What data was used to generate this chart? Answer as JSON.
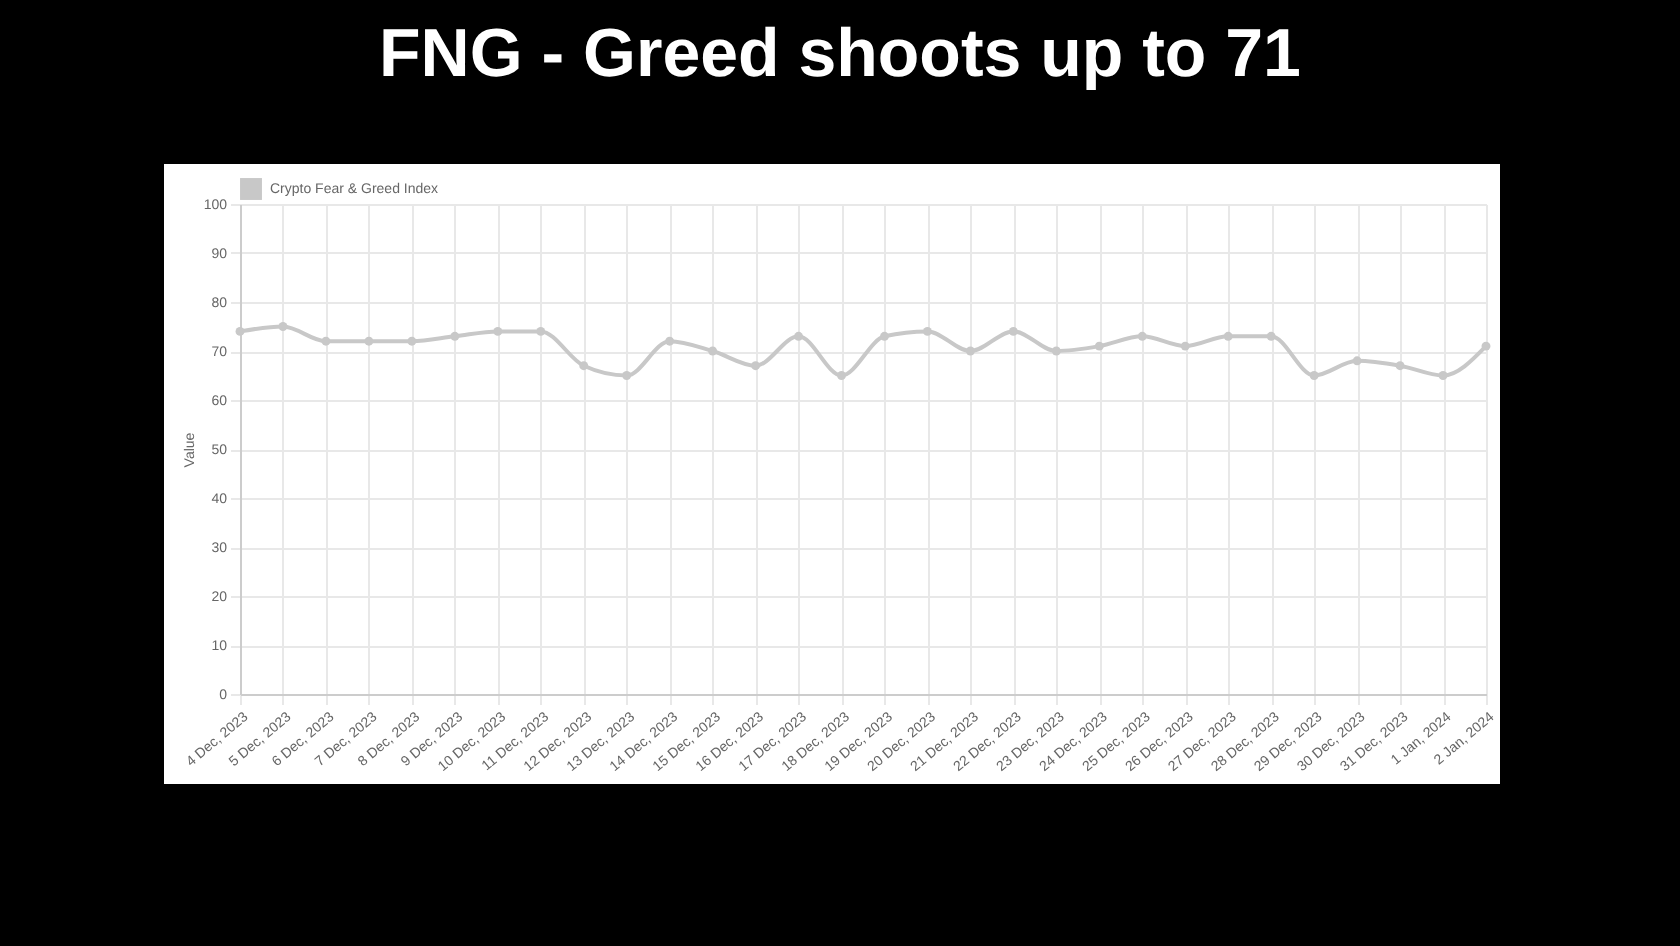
{
  "chart_data": {
    "type": "line",
    "title": "FNG - Greed shoots up to 71",
    "ylabel": "Value",
    "categories": [
      "4 Dec, 2023",
      "5 Dec, 2023",
      "6 Dec, 2023",
      "7 Dec, 2023",
      "8 Dec, 2023",
      "9 Dec, 2023",
      "10 Dec, 2023",
      "11 Dec, 2023",
      "12 Dec, 2023",
      "13 Dec, 2023",
      "14 Dec, 2023",
      "15 Dec, 2023",
      "16 Dec, 2023",
      "17 Dec, 2023",
      "18 Dec, 2023",
      "19 Dec, 2023",
      "20 Dec, 2023",
      "21 Dec, 2023",
      "22 Dec, 2023",
      "23 Dec, 2023",
      "24 Dec, 2023",
      "25 Dec, 2023",
      "26 Dec, 2023",
      "27 Dec, 2023",
      "28 Dec, 2023",
      "29 Dec, 2023",
      "30 Dec, 2023",
      "31 Dec, 2023",
      "1 Jan, 2024",
      "2 Jan, 2024"
    ],
    "series": [
      {
        "name": "Crypto Fear & Greed Index",
        "color": "#c8c8c8",
        "values": [
          74,
          75,
          72,
          72,
          72,
          73,
          74,
          74,
          67,
          65,
          72,
          70,
          67,
          73,
          65,
          73,
          74,
          70,
          74,
          70,
          71,
          73,
          71,
          73,
          73,
          65,
          68,
          67,
          65,
          71
        ]
      }
    ],
    "ylim": [
      0,
      100
    ],
    "yticks": [
      0,
      10,
      20,
      30,
      40,
      50,
      60,
      70,
      80,
      90,
      100
    ],
    "grid": true,
    "legend": "top",
    "marker": "circle",
    "line_style": "solid"
  }
}
